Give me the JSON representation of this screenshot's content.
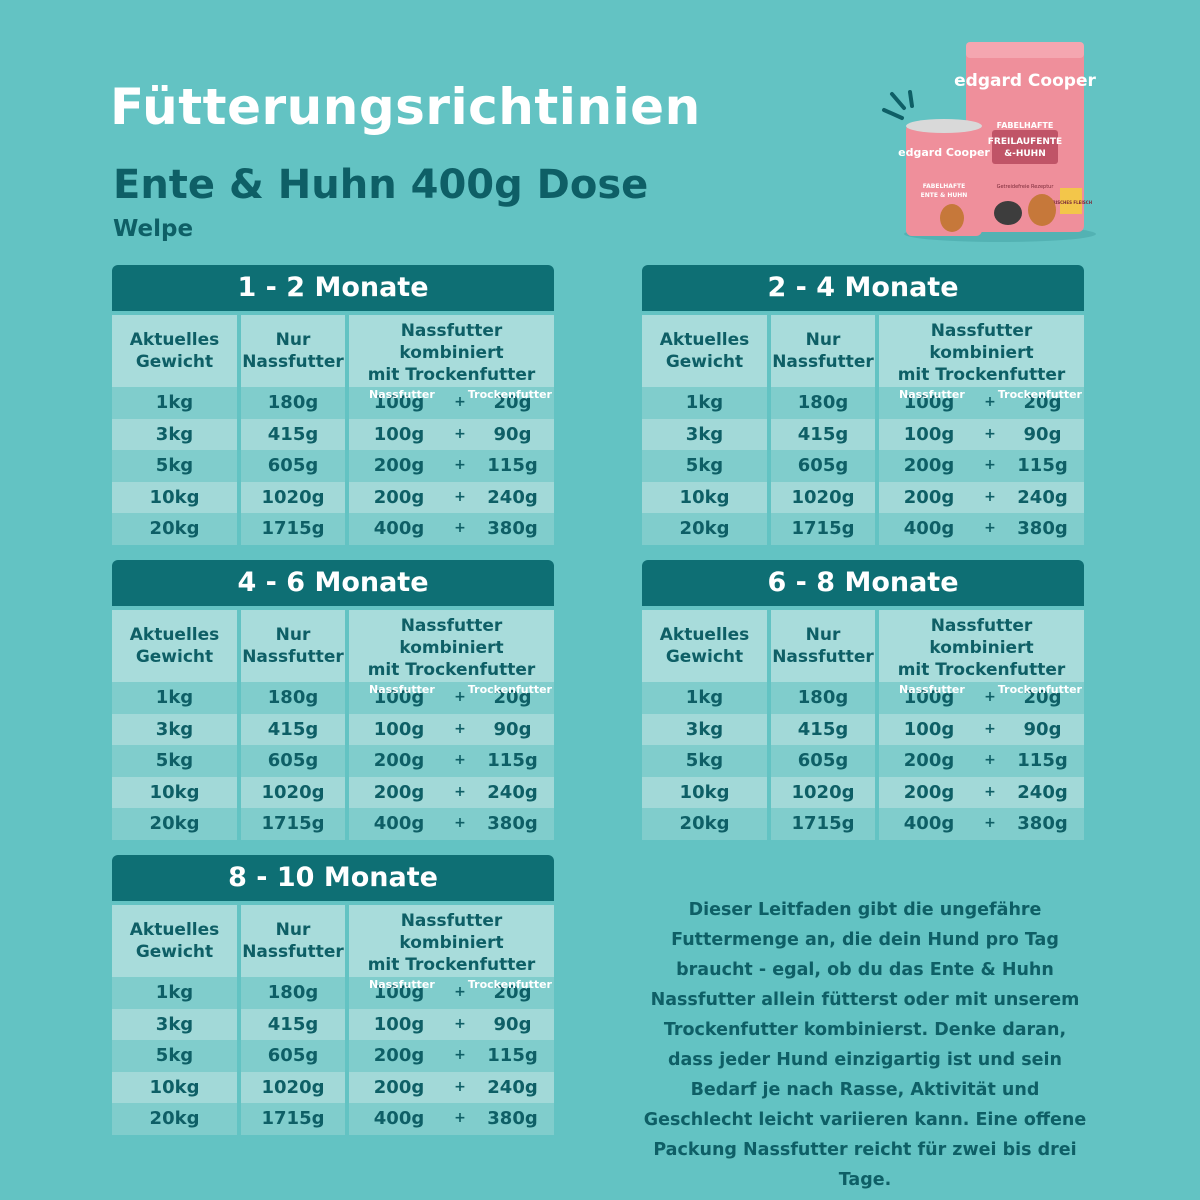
{
  "page": {
    "title": "Fütterungsrichtinien",
    "subtitle": "Ente & Huhn 400g Dose",
    "subsubtitle": "Welpe"
  },
  "products": {
    "bag_brand": "edgard Cooper",
    "bag_label_1": "FABELHAFTE",
    "bag_label_2": "FREILAUFENTE",
    "bag_label_3": "&-HUHN",
    "bag_note": "Getreidefreie Rezeptur",
    "bag_badge": "FRISCHES FLEISCH",
    "can_brand": "edgard Cooper",
    "can_label_1": "FABELHAFTE",
    "can_label_2": "ENTE & HUHN",
    "icon": "bag-and-can-icon"
  },
  "table_headers": {
    "weight": "Aktuelles Gewicht",
    "wet_only": "Nur Nassfutter",
    "combo_line1": "Nassfutter kombiniert",
    "combo_line2": "mit Trockenfutter",
    "combo_wet": "Nassfutter",
    "combo_dry": "Trockenfutter"
  },
  "tables": [
    {
      "title": "1 - 2 Monate",
      "rows": [
        {
          "weight": "1kg",
          "wet": "180g",
          "nass": "100g",
          "plus": "+",
          "dry": "20g"
        },
        {
          "weight": "3kg",
          "wet": "415g",
          "nass": "100g",
          "plus": "+",
          "dry": "90g"
        },
        {
          "weight": "5kg",
          "wet": "605g",
          "nass": "200g",
          "plus": "+",
          "dry": "115g"
        },
        {
          "weight": "10kg",
          "wet": "1020g",
          "nass": "200g",
          "plus": "+",
          "dry": "240g"
        },
        {
          "weight": "20kg",
          "wet": "1715g",
          "nass": "400g",
          "plus": "+",
          "dry": "380g"
        }
      ]
    },
    {
      "title": "2 - 4 Monate",
      "rows": [
        {
          "weight": "1kg",
          "wet": "180g",
          "nass": "100g",
          "plus": "+",
          "dry": "20g"
        },
        {
          "weight": "3kg",
          "wet": "415g",
          "nass": "100g",
          "plus": "+",
          "dry": "90g"
        },
        {
          "weight": "5kg",
          "wet": "605g",
          "nass": "200g",
          "plus": "+",
          "dry": "115g"
        },
        {
          "weight": "10kg",
          "wet": "1020g",
          "nass": "200g",
          "plus": "+",
          "dry": "240g"
        },
        {
          "weight": "20kg",
          "wet": "1715g",
          "nass": "400g",
          "plus": "+",
          "dry": "380g"
        }
      ]
    },
    {
      "title": "4 - 6 Monate",
      "rows": [
        {
          "weight": "1kg",
          "wet": "180g",
          "nass": "100g",
          "plus": "+",
          "dry": "20g"
        },
        {
          "weight": "3kg",
          "wet": "415g",
          "nass": "100g",
          "plus": "+",
          "dry": "90g"
        },
        {
          "weight": "5kg",
          "wet": "605g",
          "nass": "200g",
          "plus": "+",
          "dry": "115g"
        },
        {
          "weight": "10kg",
          "wet": "1020g",
          "nass": "200g",
          "plus": "+",
          "dry": "240g"
        },
        {
          "weight": "20kg",
          "wet": "1715g",
          "nass": "400g",
          "plus": "+",
          "dry": "380g"
        }
      ]
    },
    {
      "title": "6 - 8 Monate",
      "rows": [
        {
          "weight": "1kg",
          "wet": "180g",
          "nass": "100g",
          "plus": "+",
          "dry": "20g"
        },
        {
          "weight": "3kg",
          "wet": "415g",
          "nass": "100g",
          "plus": "+",
          "dry": "90g"
        },
        {
          "weight": "5kg",
          "wet": "605g",
          "nass": "200g",
          "plus": "+",
          "dry": "115g"
        },
        {
          "weight": "10kg",
          "wet": "1020g",
          "nass": "200g",
          "plus": "+",
          "dry": "240g"
        },
        {
          "weight": "20kg",
          "wet": "1715g",
          "nass": "400g",
          "plus": "+",
          "dry": "380g"
        }
      ]
    },
    {
      "title": "8 - 10 Monate",
      "rows": [
        {
          "weight": "1kg",
          "wet": "180g",
          "nass": "100g",
          "plus": "+",
          "dry": "20g"
        },
        {
          "weight": "3kg",
          "wet": "415g",
          "nass": "100g",
          "plus": "+",
          "dry": "90g"
        },
        {
          "weight": "5kg",
          "wet": "605g",
          "nass": "200g",
          "plus": "+",
          "dry": "115g"
        },
        {
          "weight": "10kg",
          "wet": "1020g",
          "nass": "200g",
          "plus": "+",
          "dry": "240g"
        },
        {
          "weight": "20kg",
          "wet": "1715g",
          "nass": "400g",
          "plus": "+",
          "dry": "380g"
        }
      ]
    }
  ],
  "description": "Dieser Leitfaden gibt die ungefähre Futtermenge an, die dein Hund pro Tag braucht - egal, ob du das Ente & Huhn Nassfutter allein fütterst oder mit unserem Trockenfutter kombinierst. Denke daran, dass jeder Hund einzigartig ist und sein Bedarf je nach Rasse, Aktivität und Geschlecht leicht variieren kann. Eine offene Packung Nassfutter reicht für zwei bis drei Tage.",
  "colors": {
    "background": "#63c3c3",
    "header": "#0e6f74",
    "text": "#0e5f66",
    "product_pink": "#ef8f9b"
  }
}
